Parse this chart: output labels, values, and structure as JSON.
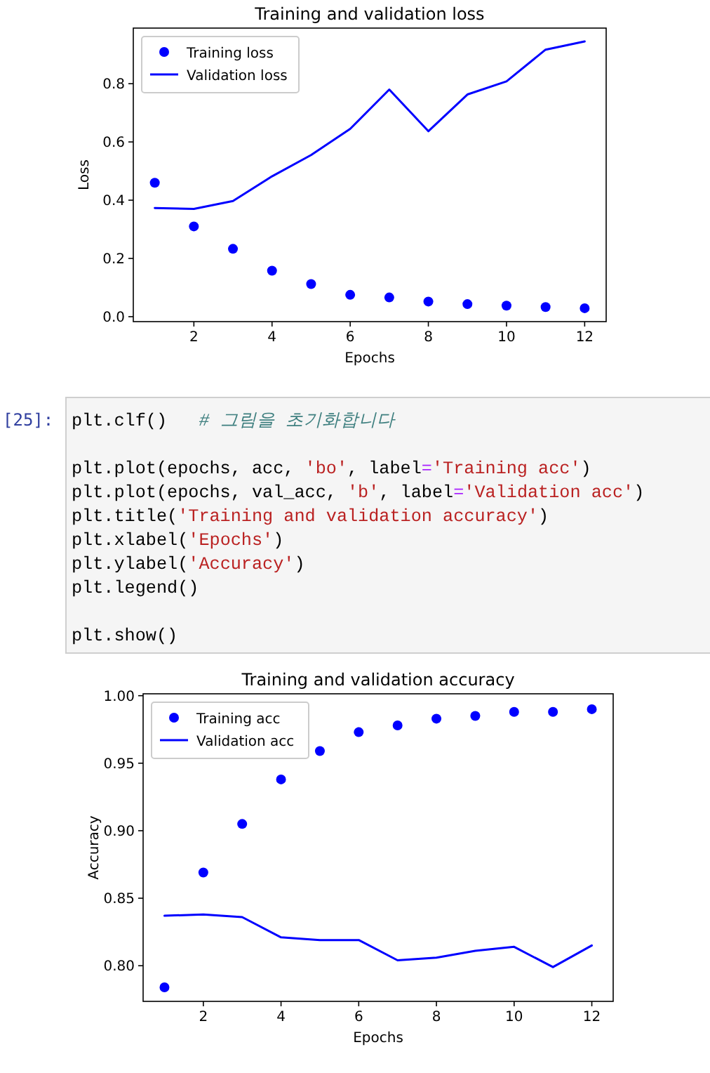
{
  "chart_data": [
    {
      "type": "line",
      "title": "Training and validation loss",
      "xlabel": "Epochs",
      "ylabel": "Loss",
      "x": [
        1,
        2,
        3,
        4,
        5,
        6,
        7,
        8,
        9,
        10,
        11,
        12
      ],
      "series": [
        {
          "name": "Training loss",
          "type": "scatter",
          "marker": "circle",
          "color": "#0000ff",
          "values": [
            0.46,
            0.31,
            0.233,
            0.158,
            0.112,
            0.075,
            0.066,
            0.052,
            0.043,
            0.038,
            0.033,
            0.029
          ]
        },
        {
          "name": "Validation loss",
          "type": "line",
          "marker": "none",
          "line_style": "solid",
          "color": "#0000ff",
          "values": [
            0.373,
            0.37,
            0.397,
            0.482,
            0.555,
            0.645,
            0.78,
            0.637,
            0.763,
            0.808,
            0.917,
            0.945
          ]
        }
      ],
      "xlim": [
        0.45,
        12.55
      ],
      "ylim": [
        -0.017,
        0.991
      ],
      "xticks": [
        2,
        4,
        6,
        8,
        10,
        12
      ],
      "yticks": [
        {
          "value": 0,
          "label": "0.0"
        },
        0.2,
        0.4,
        0.6,
        0.8
      ],
      "grid": false,
      "legend": "top left"
    },
    {
      "type": "other",
      "annotations": [
        "[25]:",
        "plt.clf()   # 그림을 초기화합니다",
        "\nplt.plot(epochs, acc, 'bo', label='Training acc')",
        "plt.plot(epochs, val_acc, 'b', label='Validation acc')",
        "plt.title('Training and validation accuracy')",
        "plt.xlabel('Epochs')",
        "plt.ylabel('Accuracy')",
        "plt.legend()",
        "\nplt.show()"
      ]
    },
    {
      "type": "line",
      "title": "Training and validation accuracy",
      "xlabel": "Epochs",
      "ylabel": "Accuracy",
      "x": [
        1,
        2,
        3,
        4,
        5,
        6,
        7,
        8,
        9,
        10,
        11,
        12
      ],
      "series": [
        {
          "name": "Training acc",
          "type": "scatter",
          "marker": "circle",
          "color": "#0000ff",
          "values": [
            0.784,
            0.869,
            0.905,
            0.938,
            0.959,
            0.973,
            0.978,
            0.983,
            0.985,
            0.988,
            0.988,
            0.99
          ]
        },
        {
          "name": "Validation acc",
          "type": "line",
          "marker": "none",
          "line_style": "solid",
          "color": "#0000ff",
          "values": [
            0.837,
            0.838,
            0.836,
            0.821,
            0.819,
            0.819,
            0.804,
            0.806,
            0.811,
            0.814,
            0.799,
            0.815
          ]
        }
      ],
      "xlim": [
        0.45,
        12.55
      ],
      "ylim": [
        0.7736,
        1.0014
      ],
      "xticks": [
        2,
        4,
        6,
        8,
        10,
        12
      ],
      "yticks": [
        {
          "value": 0.8,
          "label": "0.80"
        },
        0.85,
        {
          "value": 0.9,
          "label": "0.90"
        },
        0.95,
        {
          "value": 1.0,
          "label": "1.00"
        }
      ],
      "grid": false,
      "legend": "top left"
    }
  ]
}
